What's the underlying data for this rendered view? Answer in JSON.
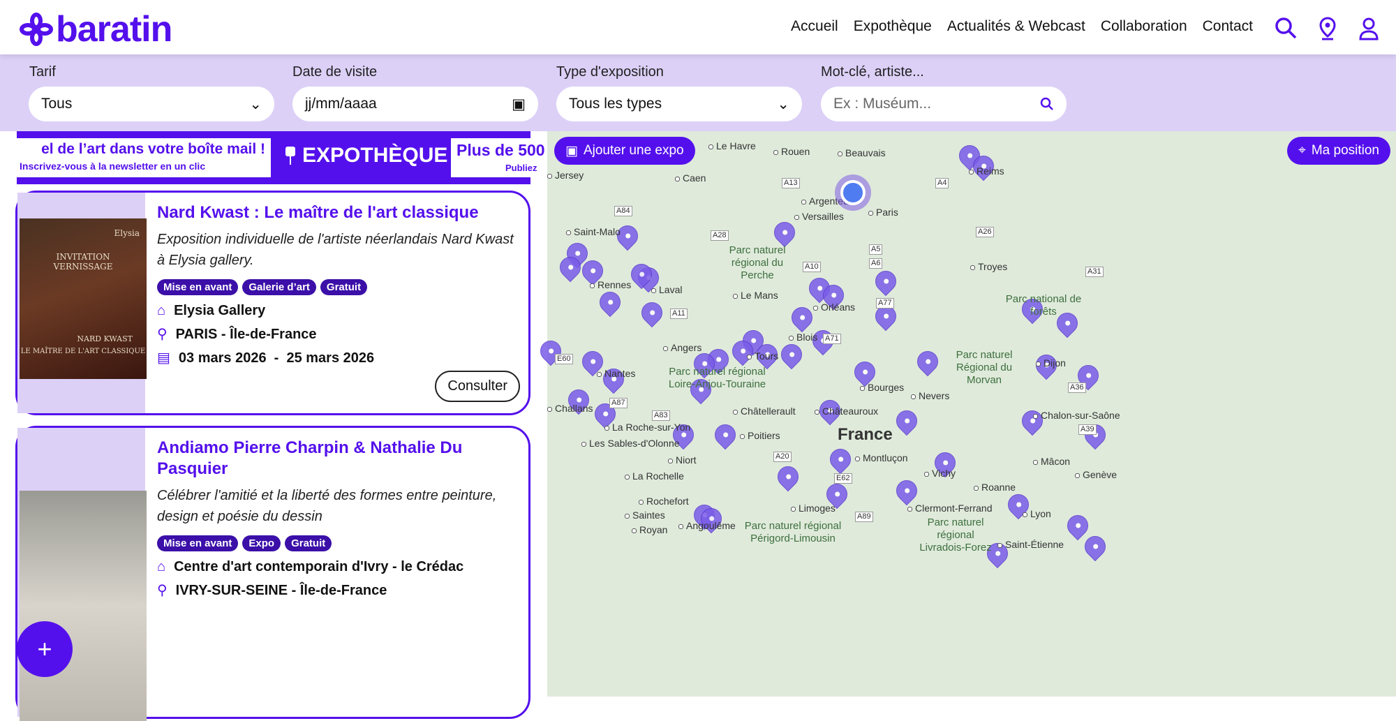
{
  "header": {
    "logo": "baratin",
    "nav": [
      "Accueil",
      "Expothèque",
      "Actualités & Webcast",
      "Collaboration",
      "Contact"
    ],
    "icons": [
      "search-icon",
      "map-pin-icon",
      "user-icon"
    ]
  },
  "filters": {
    "tarif": {
      "label": "Tarif",
      "value": "Tous"
    },
    "date": {
      "label": "Date de visite",
      "placeholder": "jj/mm/aaaa"
    },
    "type": {
      "label": "Type d'exposition",
      "value": "Tous les types"
    },
    "keyword": {
      "label": "Mot-clé, artiste...",
      "placeholder": "Ex : Muséum..."
    }
  },
  "banner": {
    "newsletter_title": "el de l’art dans votre boîte mail !",
    "newsletter_sub": "Inscrivez-vous à la newsletter en un clic",
    "expotheque": "EXPOTHÈQUE",
    "more": "Plus de 500",
    "more_sub": "Publiez"
  },
  "cards": [
    {
      "title": "Nard Kwast : Le maître de l'art classique",
      "desc": "Exposition individuelle de l'artiste néerlandais Nard Kwast à Elysia gallery.",
      "tags": [
        "Mise en avant",
        "Galerie d’art",
        "Gratuit"
      ],
      "venue": "Elysia Gallery",
      "location": "PARIS - Île-de-France",
      "dates": "03 mars 2026  -  25 mars 2026",
      "button": "Consulter",
      "poster_text": "NARD KWAST",
      "poster_sub": "LE MAÎTRE DE L'ART CLASSIQUE",
      "poster_invite": "INVITATION VERNISSAGE",
      "poster_brand": "Elysia"
    },
    {
      "title": "Andiamo Pierre Charpin & Nathalie Du Pasquier",
      "desc": "Célébrer l'amitié et la liberté des formes entre peinture, design et poésie du dessin",
      "tags": [
        "Mise en avant",
        "Expo",
        "Gratuit"
      ],
      "venue": "Centre d'art contemporain d'Ivry - le Crédac",
      "location": "IVRY-SUR-SEINE - Île-de-France"
    }
  ],
  "fab": "+",
  "map": {
    "add_button": "Ajouter une expo",
    "position_button": "Ma position",
    "country": "France",
    "cities": [
      "Le Havre",
      "Rouen",
      "Beauvais",
      "Reims",
      "Caen",
      "Argenteuil",
      "Versailles",
      "Paris",
      "Saint-Malo",
      "Rennes",
      "Laval",
      "Le Mans",
      "Orléans",
      "Troyes",
      "Angers",
      "Tours",
      "Blois",
      "Nantes",
      "Bourges",
      "Nevers",
      "Dijon",
      "Châtellerault",
      "Châteauroux",
      "La Roche-sur-Yon",
      "Poitiers",
      "Les Sables-d'Olonne",
      "Niort",
      "Montluçon",
      "Mâcon",
      "Genève",
      "La Rochelle",
      "Vichy",
      "Roanne",
      "Rochefort",
      "Limoges",
      "Clermont-Ferrand",
      "Lyon",
      "Saintes",
      "Royan",
      "Angoulême",
      "Saint-Étienne",
      "Chalon-sur-Saône",
      "Jersey",
      "Challans"
    ],
    "parks": [
      "Parc naturel régional du Perche",
      "Parc naturel régional Loire-Anjou-Touraine",
      "Parc naturel Régional du Morvan",
      "Parc national de forêts",
      "Parc naturel régional Périgord-Limousin",
      "Parc naturel régional Livradois-Forez"
    ],
    "roads": [
      "A13",
      "A84",
      "A28",
      "A11",
      "A10",
      "A5",
      "A6",
      "A4",
      "A26",
      "A31",
      "A77",
      "A71",
      "A87",
      "A83",
      "E60",
      "A20",
      "E62",
      "A89",
      "A36",
      "A39"
    ]
  }
}
